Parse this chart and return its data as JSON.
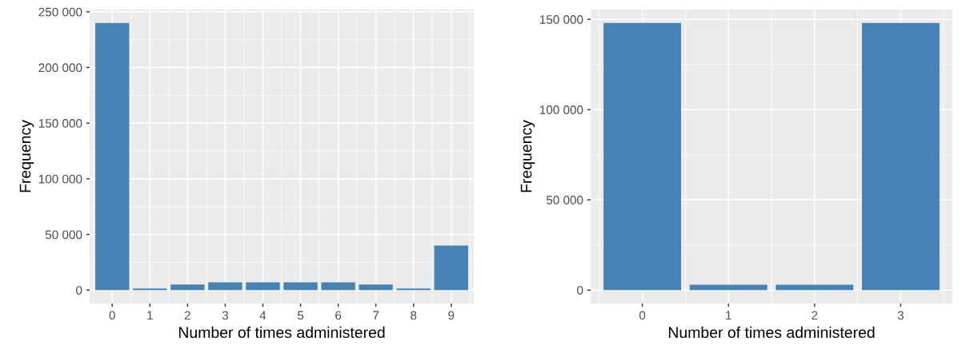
{
  "chart_data": [
    {
      "type": "bar",
      "xlabel": "Number of times administered",
      "ylabel": "Frequency",
      "categories": [
        "0",
        "1",
        "2",
        "3",
        "4",
        "5",
        "6",
        "7",
        "8",
        "9"
      ],
      "values": [
        240000,
        1500,
        5000,
        7000,
        7000,
        7000,
        7000,
        5000,
        1500,
        40000
      ],
      "color": "#4682b4",
      "ylim": [
        -12000,
        252000
      ],
      "yticks": [
        {
          "value": 0,
          "label": "0"
        },
        {
          "value": 50000,
          "label": "50 000"
        },
        {
          "value": 100000,
          "label": "100 000"
        },
        {
          "value": 150000,
          "label": "150 000"
        },
        {
          "value": 200000,
          "label": "200 000"
        },
        {
          "value": 250000,
          "label": "250 000"
        }
      ],
      "grid": true
    },
    {
      "type": "bar",
      "xlabel": "Number of times administered",
      "ylabel": "Frequency",
      "categories": [
        "0",
        "1",
        "2",
        "3"
      ],
      "values": [
        148000,
        3000,
        3000,
        148000
      ],
      "color": "#4682b4",
      "ylim": [
        -7400,
        155400
      ],
      "yticks": [
        {
          "value": 0,
          "label": "0"
        },
        {
          "value": 50000,
          "label": "50 000"
        },
        {
          "value": 100000,
          "label": "100 000"
        },
        {
          "value": 150000,
          "label": "150 000"
        }
      ],
      "grid": true
    }
  ]
}
